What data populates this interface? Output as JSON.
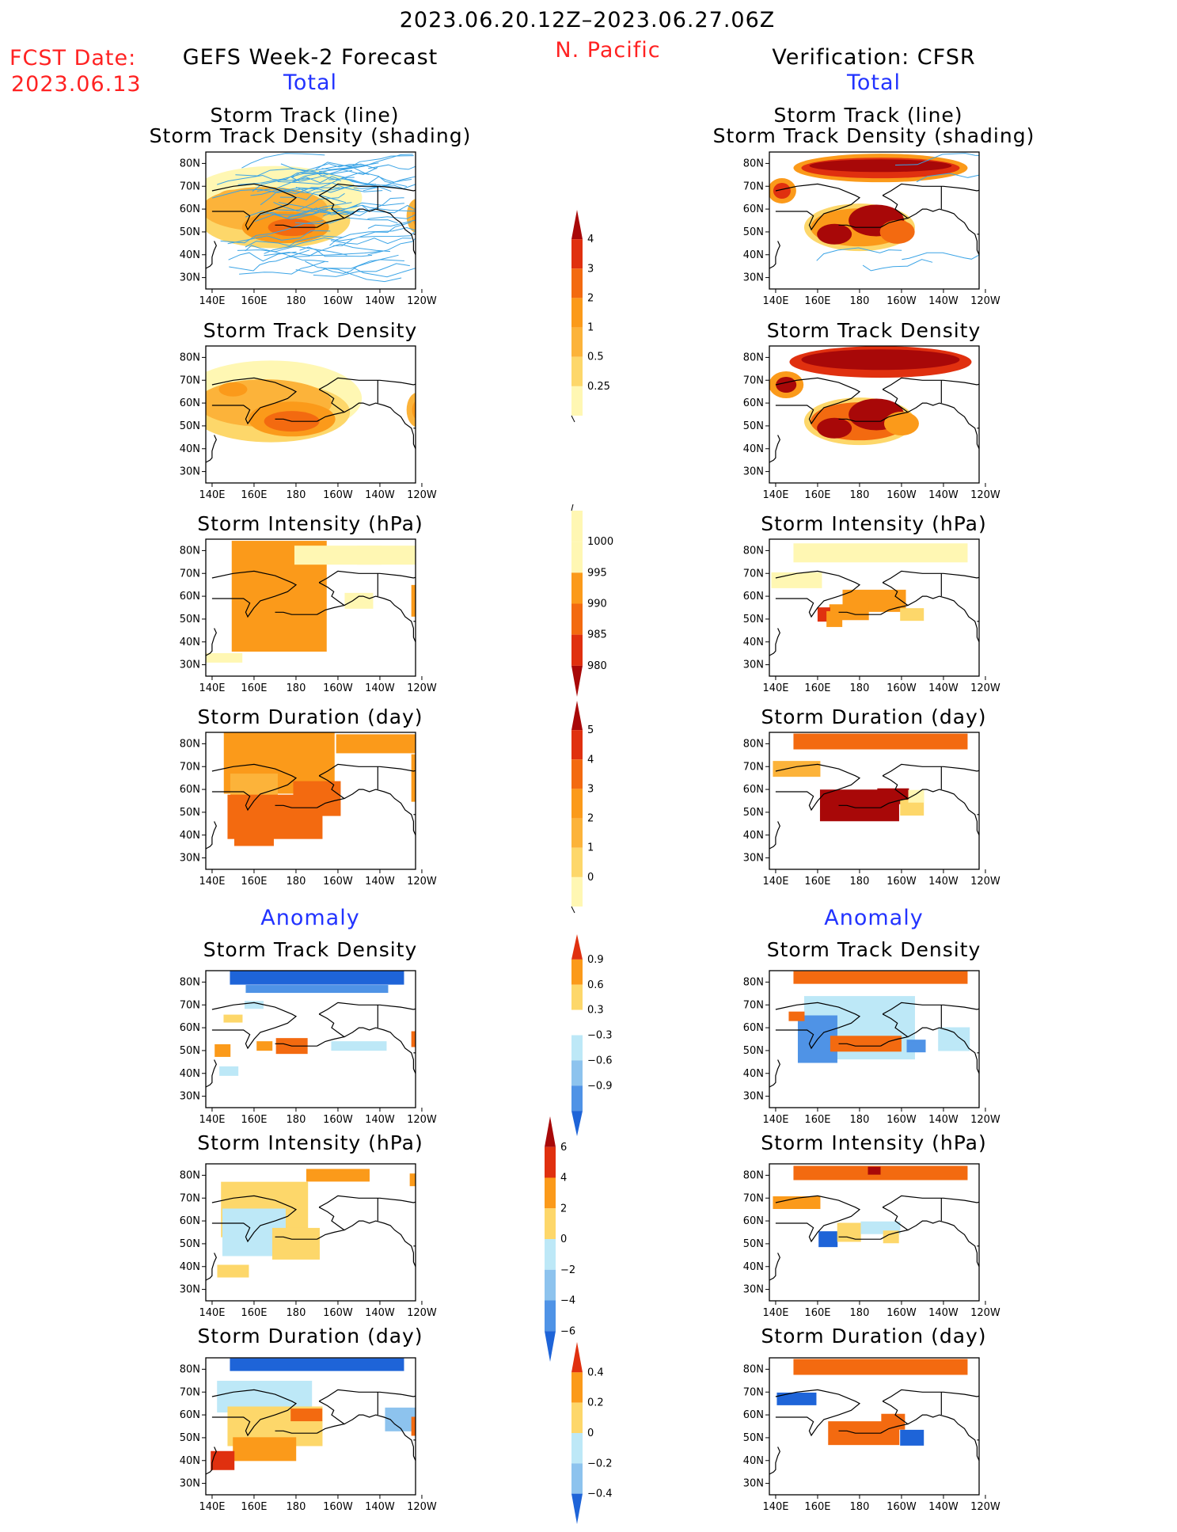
{
  "header": {
    "date_range": "2023.06.20.12Z–2023.06.27.06Z",
    "region": "N. Pacific",
    "fcst_label": "FCST Date:",
    "fcst_date": "2023.06.13",
    "left_title": "GEFS Week-2 Forecast",
    "right_title": "Verification: CFSR",
    "total_label": "Total",
    "anomaly_label": "Anomaly"
  },
  "panel_titles": {
    "track_line": "Storm Track (line)",
    "track_shading": "Storm Track Density (shading)",
    "density": "Storm Track Density",
    "intensity": "Storm Intensity (hPa)",
    "duration": "Storm Duration (day)"
  },
  "axes": {
    "x_ticks": [
      "140E",
      "160E",
      "180",
      "160W",
      "140W",
      "120W"
    ],
    "y_ticks": [
      "80N",
      "70N",
      "60N",
      "50N",
      "40N",
      "30N"
    ]
  },
  "colors": {
    "yellow_light": "#fff7b3",
    "yellow": "#fdd76a",
    "orange_light": "#fcb33a",
    "orange": "#fb9a1a",
    "orange_dark": "#f36a10",
    "red": "#e0300f",
    "dark_red": "#a80808",
    "blue_light": "#bde8f7",
    "blue": "#8dc3ee",
    "blue_mid": "#4f93e6",
    "blue_dark": "#1e64d8",
    "track_line": "#3ba4e6"
  },
  "chart_data": [
    {
      "type": "heatmap",
      "name": "forecast-total-track",
      "title": "Storm Track (line) / Storm Track Density (shading)",
      "column": "GEFS Week-2 Forecast",
      "section": "Total",
      "colorbar": "density"
    },
    {
      "type": "heatmap",
      "name": "verification-total-track",
      "title": "Storm Track (line) / Storm Track Density (shading)",
      "column": "Verification: CFSR",
      "section": "Total",
      "colorbar": "density"
    },
    {
      "type": "heatmap",
      "name": "forecast-total-density",
      "title": "Storm Track Density",
      "column": "GEFS Week-2 Forecast",
      "section": "Total",
      "colorbar": "density"
    },
    {
      "type": "heatmap",
      "name": "verification-total-density",
      "title": "Storm Track Density",
      "column": "Verification: CFSR",
      "section": "Total",
      "colorbar": "density"
    },
    {
      "type": "heatmap",
      "name": "forecast-total-intensity",
      "title": "Storm Intensity (hPa)",
      "column": "GEFS Week-2 Forecast",
      "section": "Total",
      "colorbar": "intensity"
    },
    {
      "type": "heatmap",
      "name": "verification-total-intensity",
      "title": "Storm Intensity (hPa)",
      "column": "Verification: CFSR",
      "section": "Total",
      "colorbar": "intensity"
    },
    {
      "type": "heatmap",
      "name": "forecast-total-duration",
      "title": "Storm Duration (day)",
      "column": "GEFS Week-2 Forecast",
      "section": "Total",
      "colorbar": "duration"
    },
    {
      "type": "heatmap",
      "name": "verification-total-duration",
      "title": "Storm Duration (day)",
      "column": "Verification: CFSR",
      "section": "Total",
      "colorbar": "duration"
    },
    {
      "type": "heatmap",
      "name": "forecast-anom-density",
      "title": "Storm Track Density",
      "column": "GEFS Week-2 Forecast",
      "section": "Anomaly",
      "colorbar": "anom_density"
    },
    {
      "type": "heatmap",
      "name": "verification-anom-density",
      "title": "Storm Track Density",
      "column": "Verification: CFSR",
      "section": "Anomaly",
      "colorbar": "anom_density"
    },
    {
      "type": "heatmap",
      "name": "forecast-anom-intensity",
      "title": "Storm Intensity (hPa)",
      "column": "GEFS Week-2 Forecast",
      "section": "Anomaly",
      "colorbar": "anom_intensity"
    },
    {
      "type": "heatmap",
      "name": "verification-anom-intensity",
      "title": "Storm Intensity (hPa)",
      "column": "Verification: CFSR",
      "section": "Anomaly",
      "colorbar": "anom_intensity"
    },
    {
      "type": "heatmap",
      "name": "forecast-anom-duration",
      "title": "Storm Duration (day)",
      "column": "GEFS Week-2 Forecast",
      "section": "Anomaly",
      "colorbar": "anom_duration"
    },
    {
      "type": "heatmap",
      "name": "verification-anom-duration",
      "title": "Storm Duration (day)",
      "column": "Verification: CFSR",
      "section": "Anomaly",
      "colorbar": "anom_duration"
    }
  ],
  "colorbars": {
    "density": {
      "labels": [
        "4",
        "3",
        "2",
        "1",
        "0.5",
        "0.25"
      ],
      "colors": [
        "#a80808",
        "#e0300f",
        "#f36a10",
        "#fb9a1a",
        "#fcb33a",
        "#fdd76a",
        "#fff7b3"
      ]
    },
    "intensity": {
      "labels": [
        "1000",
        "995",
        "990",
        "985",
        "980"
      ],
      "colors": [
        "#fff7b3",
        "#fff7b3",
        "#fb9a1a",
        "#f36a10",
        "#e0300f",
        "#a80808"
      ]
    },
    "duration": {
      "labels": [
        "5",
        "4",
        "3",
        "2",
        "1",
        "0"
      ],
      "colors": [
        "#a80808",
        "#e0300f",
        "#f36a10",
        "#fb9a1a",
        "#fcb33a",
        "#fdd76a",
        "#fff7b3"
      ]
    },
    "anom_density": {
      "labels": [
        "0.9",
        "0.6",
        "0.3",
        "−0.3",
        "−0.6",
        "−0.9"
      ],
      "colors": [
        "#e0300f",
        "#fb9a1a",
        "#fdd76a",
        "#ffffff",
        "#bde8f7",
        "#8dc3ee",
        "#4f93e6",
        "#1e64d8"
      ]
    },
    "anom_intensity": {
      "labels": [
        "6",
        "4",
        "2",
        "0",
        "−2",
        "−4",
        "−6"
      ],
      "colors": [
        "#a80808",
        "#e0300f",
        "#fb9a1a",
        "#fdd76a",
        "#bde8f7",
        "#8dc3ee",
        "#4f93e6",
        "#1e64d8"
      ]
    },
    "anom_duration": {
      "labels": [
        "0.4",
        "0.2",
        "0",
        "−0.2",
        "−0.4"
      ],
      "colors": [
        "#e0300f",
        "#fb9a1a",
        "#fdd76a",
        "#bde8f7",
        "#8dc3ee",
        "#1e64d8"
      ]
    }
  }
}
